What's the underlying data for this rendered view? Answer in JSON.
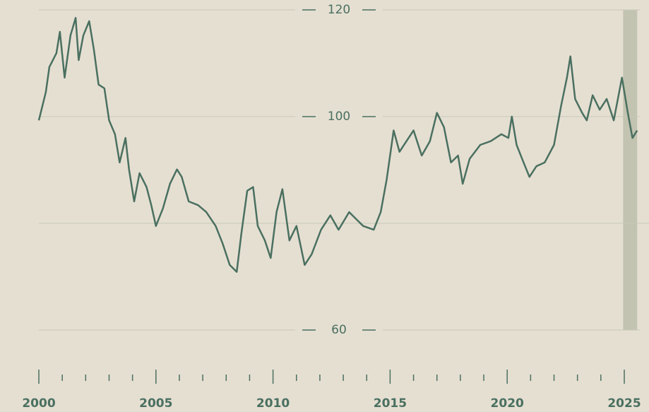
{
  "chart_data": {
    "type": "line",
    "x": [
      2000.0,
      2000.3,
      2000.45,
      2000.75,
      2000.9,
      2001.1,
      2001.35,
      2001.57,
      2001.7,
      2001.9,
      2002.15,
      2002.35,
      2002.55,
      2002.8,
      2003.0,
      2003.25,
      2003.45,
      2003.7,
      2003.85,
      2004.07,
      2004.3,
      2004.6,
      2004.8,
      2005.0,
      2005.3,
      2005.6,
      2005.9,
      2006.1,
      2006.4,
      2006.8,
      2007.15,
      2007.55,
      2007.85,
      2008.15,
      2008.45,
      2008.65,
      2008.9,
      2009.15,
      2009.35,
      2009.65,
      2009.9,
      2010.15,
      2010.4,
      2010.7,
      2011.0,
      2011.35,
      2011.65,
      2012.05,
      2012.45,
      2012.8,
      2013.25,
      2013.55,
      2013.85,
      2014.3,
      2014.6,
      2014.85,
      2015.15,
      2015.4,
      2015.7,
      2016.0,
      2016.35,
      2016.7,
      2017.0,
      2017.3,
      2017.6,
      2017.9,
      2018.1,
      2018.4,
      2018.85,
      2019.3,
      2019.75,
      2020.05,
      2020.2,
      2020.4,
      2020.7,
      2020.95,
      2021.25,
      2021.6,
      2022.0,
      2022.3,
      2022.55,
      2022.7,
      2022.9,
      2023.2,
      2023.4,
      2023.65,
      2023.95,
      2024.25,
      2024.55,
      2024.9,
      2025.15,
      2025.35,
      2025.55
    ],
    "series": [
      {
        "color": "#4a7060",
        "values": [
          99.3,
          104.6,
          109.3,
          111.9,
          115.9,
          107.3,
          115.2,
          118.5,
          110.6,
          115.2,
          117.9,
          112.6,
          106,
          105.3,
          99.3,
          96.7,
          91.4,
          96,
          90.1,
          84.1,
          89.4,
          86.8,
          83.4,
          79.5,
          82.8,
          87.4,
          90.1,
          88.7,
          84.1,
          83.4,
          82.1,
          79.5,
          76.2,
          72.2,
          70.9,
          78.1,
          86.1,
          86.8,
          79.5,
          76.8,
          73.5,
          82.1,
          86.4,
          76.8,
          79.5,
          72.2,
          74.2,
          78.8,
          81.5,
          78.8,
          82.1,
          80.8,
          79.5,
          78.8,
          82.1,
          88.1,
          97.4,
          93.4,
          95.4,
          97.4,
          92.7,
          95.4,
          100.7,
          98,
          91.4,
          92.7,
          87.4,
          92.1,
          94.7,
          95.4,
          96.7,
          96,
          100,
          94.7,
          91.4,
          88.7,
          90.7,
          91.4,
          94.7,
          102,
          107.3,
          111.3,
          103.3,
          100.7,
          99.3,
          104,
          101.3,
          103.3,
          99.3,
          107.3,
          100.7,
          96,
          97.4
        ]
      }
    ],
    "xlim": [
      2000,
      2025.6
    ],
    "xticks": [
      2000,
      2005,
      2010,
      2015,
      2020,
      2025
    ],
    "xminor_ticks": [
      2001,
      2002,
      2003,
      2004,
      2006,
      2007,
      2008,
      2009,
      2011,
      2012,
      2013,
      2014,
      2016,
      2017,
      2018,
      2019,
      2021,
      2022,
      2023,
      2024
    ],
    "ylim": [
      60,
      120
    ],
    "yticks": [
      60,
      100,
      120
    ],
    "ygrid": [
      60,
      80,
      100,
      120
    ],
    "shaded_x": [
      2024.95,
      2025.55
    ],
    "shade_color": "#c2c3b1",
    "grid_color": "#c8cab5"
  }
}
